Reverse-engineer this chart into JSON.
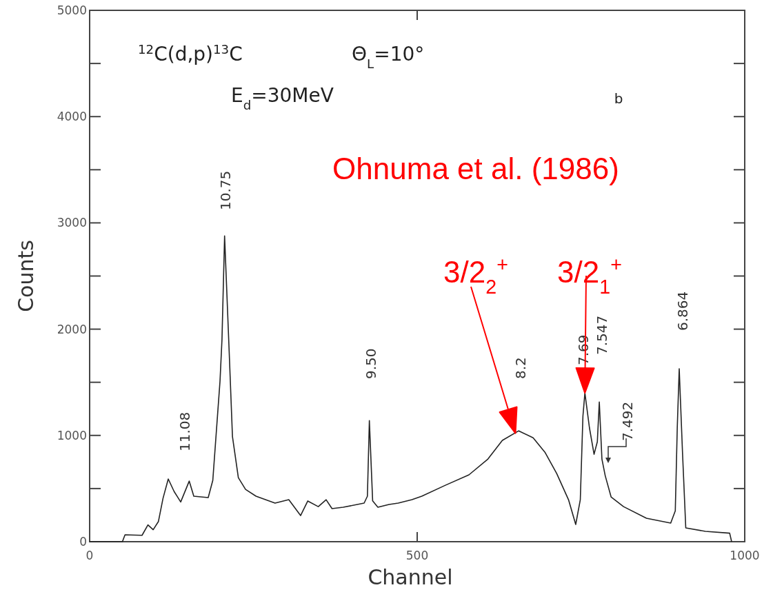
{
  "chart_data": {
    "type": "line",
    "title": "$^{12}$C(d,p)$^{13}$C",
    "xlabel": "Channel",
    "ylabel": "Counts",
    "xlim": [
      0,
      1000
    ],
    "xticks": [
      0,
      500,
      1000
    ],
    "ylim": [
      0,
      5000
    ],
    "yticks": [
      0,
      {
        "value": 500,
        "label": null
      },
      1000,
      {
        "value": 1500,
        "label": null
      },
      2000,
      {
        "value": 2500,
        "label": null
      },
      3000,
      {
        "value": 3500,
        "label": null
      },
      4000,
      {
        "value": 4500,
        "label": null
      },
      5000
    ],
    "grid": false,
    "marker": "none",
    "line_style": "solid",
    "series": [
      {
        "color": "#222222",
        "x": [
          0,
          50,
          54,
          80,
          89,
          97,
          105,
          112,
          120,
          129,
          139,
          152,
          159,
          181,
          188,
          199,
          202,
          206,
          213,
          218,
          227,
          238,
          254,
          283,
          304,
          322,
          333,
          349,
          361,
          370,
          387,
          419,
          424,
          427,
          432,
          440,
          457,
          471,
          492,
          507,
          543,
          579,
          608,
          630,
          655,
          677,
          695,
          713,
          731,
          742,
          749,
          753,
          756,
          763,
          770,
          775,
          778,
          782,
          787,
          796,
          815,
          850,
          887,
          894,
          897,
          900,
          905,
          910,
          940,
          977,
          980
        ],
        "values": [
          0,
          0,
          65,
          60,
          158,
          113,
          190,
          408,
          590,
          472,
          374,
          570,
          428,
          415,
          577,
          1510,
          1900,
          2877,
          1790,
          990,
          602,
          492,
          428,
          363,
          395,
          246,
          383,
          330,
          395,
          311,
          324,
          363,
          428,
          1140,
          385,
          324,
          350,
          363,
          395,
          428,
          531,
          629,
          778,
          953,
          1043,
          978,
          842,
          641,
          395,
          162,
          395,
          1180,
          1400,
          1070,
          823,
          940,
          1315,
          778,
          622,
          421,
          330,
          220,
          175,
          290,
          1070,
          1627,
          842,
          130,
          97,
          80,
          0
        ]
      }
    ],
    "annotations": [
      "E$_{d}$=30MeV",
      "Θ$_{L}$=10°",
      "b",
      "Ohnuma et al. (1986)",
      "11.08",
      "10.75",
      "9.50",
      "8.2",
      "7.69",
      "7.547",
      "7.492",
      "6.864",
      {
        "text": "3/2$_{2}$$^{+}$",
        "x": 650,
        "y": 1020
      },
      {
        "text": "3/2$_{1}$$^{+}$",
        "x": 756,
        "y": 1400
      }
    ]
  }
}
